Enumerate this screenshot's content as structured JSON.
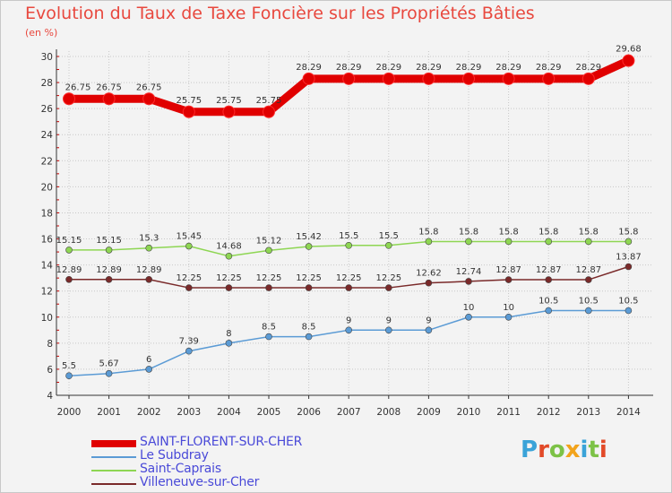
{
  "title": "Evolution du Taux de Taxe Foncière sur les Propriétés Bâties",
  "unit": "(en %)",
  "logo": {
    "text": "Proxiti",
    "colors": [
      "#3aa3d8",
      "#e24a28",
      "#7cc246",
      "#f2a31b",
      "#3aa3d8",
      "#7cc246",
      "#e24a28"
    ]
  },
  "colors": {
    "grid": "#c8c8c8",
    "axis": "#333333",
    "frame_bg": "#f3f3f3",
    "tick_mark": "#cc0000"
  },
  "chart_data": {
    "type": "line",
    "title": "Evolution du Taux de Taxe Foncière sur les Propriétés Bâties",
    "ylabel": "(en %)",
    "xlabel": "",
    "ylim": [
      4,
      30
    ],
    "yticks": [
      4,
      6,
      8,
      10,
      12,
      14,
      16,
      18,
      20,
      22,
      24,
      26,
      28,
      30
    ],
    "categories": [
      "2000",
      "2001",
      "2002",
      "2003",
      "2004",
      "2005",
      "2006",
      "2007",
      "2008",
      "2009",
      "2010",
      "2011",
      "2012",
      "2013",
      "2014"
    ],
    "grid": true,
    "series": [
      {
        "name": "SAINT-FLORENT-SUR-CHER",
        "color": "#e00000",
        "values": [
          26.75,
          26.75,
          26.75,
          25.75,
          25.75,
          25.75,
          28.29,
          28.29,
          28.29,
          28.29,
          28.29,
          28.29,
          28.29,
          28.29,
          29.68
        ],
        "labels": [
          "26.75",
          "26.75",
          "26.75",
          "25.75",
          "25.75",
          "25.75",
          "28.29",
          "28.29",
          "28.29",
          "28.29",
          "28.29",
          "28.29",
          "28.29",
          "28.29",
          "29.68"
        ]
      },
      {
        "name": "Le Subdray",
        "color": "#5b9bd5",
        "values": [
          5.5,
          5.67,
          6,
          7.39,
          8,
          8.5,
          8.5,
          9,
          9,
          9,
          10,
          10,
          10.5,
          10.5,
          10.5
        ],
        "labels": [
          "5.5",
          "5.67",
          "6",
          "7.39",
          "8",
          "8.5",
          "8.5",
          "9",
          "9",
          "9",
          "10",
          "10",
          "10.5",
          "10.5",
          "10.5"
        ]
      },
      {
        "name": "Saint-Caprais",
        "color": "#8ed653",
        "values": [
          15.15,
          15.15,
          15.3,
          15.45,
          14.68,
          15.12,
          15.42,
          15.5,
          15.5,
          15.8,
          15.8,
          15.8,
          15.8,
          15.8,
          15.8
        ],
        "labels": [
          "15.15",
          "15.15",
          "15.3",
          "15.45",
          "14.68",
          "15.12",
          "15.42",
          "15.5",
          "15.5",
          "15.8",
          "15.8",
          "15.8",
          "15.8",
          "15.8",
          "15.8"
        ]
      },
      {
        "name": "Villeneuve-sur-Cher",
        "color": "#7a2a2a",
        "values": [
          12.89,
          12.89,
          12.89,
          12.25,
          12.25,
          12.25,
          12.25,
          12.25,
          12.25,
          12.62,
          12.74,
          12.87,
          12.87,
          12.87,
          13.87
        ],
        "labels": [
          "12.89",
          "12.89",
          "12.89",
          "12.25",
          "12.25",
          "12.25",
          "12.25",
          "12.25",
          "12.25",
          "12.62",
          "12.74",
          "12.87",
          "12.87",
          "12.87",
          "13.87"
        ]
      }
    ],
    "legend_position": "bottom-left"
  }
}
